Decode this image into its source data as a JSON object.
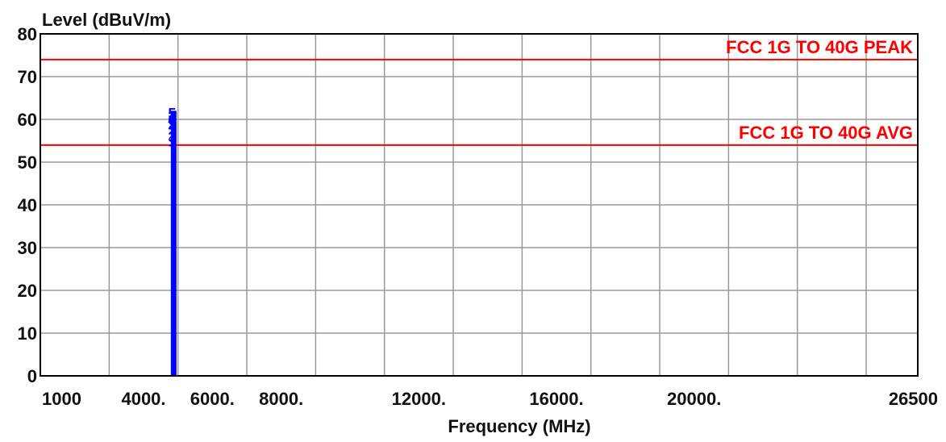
{
  "chart_data": {
    "type": "line",
    "ylabel": "Level (dBuV/m)",
    "xlabel": "Frequency (MHz)",
    "xlim": [
      1000,
      26500
    ],
    "ylim": [
      0,
      80
    ],
    "grid": true,
    "x_ticks": [
      {
        "value": 1000,
        "label": "1000"
      },
      {
        "value": 4000,
        "label": "4000."
      },
      {
        "value": 6000,
        "label": "6000."
      },
      {
        "value": 8000,
        "label": "8000."
      },
      {
        "value": 12000,
        "label": "12000."
      },
      {
        "value": 16000,
        "label": "16000."
      },
      {
        "value": 20000,
        "label": "20000."
      },
      {
        "value": 26500,
        "label": "26500"
      }
    ],
    "x_grid": [
      1000,
      3000,
      5000,
      7000,
      9000,
      11000,
      13000,
      15000,
      17000,
      19000,
      21000,
      23000,
      25000,
      26500
    ],
    "y_ticks": [
      0,
      10,
      20,
      30,
      40,
      50,
      60,
      70,
      80
    ],
    "limit_lines": [
      {
        "name": "FCC  1G TO 40G PEAK",
        "value": 73.98,
        "color": "#ff0000"
      },
      {
        "name": "FCC  1G TO 40G AVG",
        "value": 53.98,
        "color": "#ff0000"
      }
    ],
    "series": [
      {
        "color": "#0000ff",
        "x": [
          4875,
          4875
        ],
        "y": [
          0,
          62
        ]
      }
    ],
    "markers": [
      {
        "label": "1",
        "x": 4875,
        "y": 55
      },
      {
        "label": "2",
        "x": 4875,
        "y": 59
      },
      {
        "label": "3",
        "x": 4875,
        "y": 56
      },
      {
        "label": "4",
        "x": 4875,
        "y": 60
      },
      {
        "label": "5",
        "x": 4875,
        "y": 61.5
      },
      {
        "label": "6",
        "x": 4875,
        "y": 60
      }
    ],
    "colors": {
      "grid": "#9a9a9a",
      "axis": "#000000",
      "limit": "#ff0000",
      "trace": "#0000ff"
    }
  }
}
